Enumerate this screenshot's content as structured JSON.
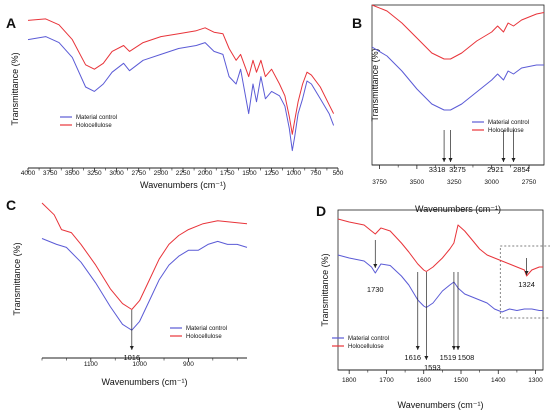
{
  "colors": {
    "material_control": "#5b5bd6",
    "holocellulose": "#e8343a",
    "axis": "#222222",
    "annotation": "#222222"
  },
  "chart_data": [
    {
      "panel": "A",
      "type": "line",
      "xlabel": "Wavenumbers (cm⁻¹)",
      "ylabel": "Transmittance (%)",
      "xlim": [
        4000,
        500
      ],
      "x_reversed": true,
      "ylim": [
        0,
        100
      ],
      "xticks": [
        4000,
        3750,
        3500,
        3250,
        3000,
        2750,
        2500,
        2250,
        2000,
        1750,
        1500,
        1250,
        1000,
        750,
        500
      ],
      "legend": "lower-left",
      "series": [
        {
          "name": "Material control",
          "color": "#5b5bd6",
          "points": [
            [
              4000,
              80
            ],
            [
              3800,
              82
            ],
            [
              3650,
              78
            ],
            [
              3500,
              68
            ],
            [
              3350,
              48
            ],
            [
              3250,
              45
            ],
            [
              3150,
              50
            ],
            [
              3050,
              58
            ],
            [
              2921,
              64
            ],
            [
              2854,
              59
            ],
            [
              2700,
              66
            ],
            [
              2500,
              70
            ],
            [
              2300,
              74
            ],
            [
              2100,
              76
            ],
            [
              2000,
              78
            ],
            [
              1900,
              72
            ],
            [
              1800,
              70
            ],
            [
              1730,
              55
            ],
            [
              1650,
              50
            ],
            [
              1600,
              60
            ],
            [
              1508,
              30
            ],
            [
              1460,
              50
            ],
            [
              1420,
              38
            ],
            [
              1370,
              55
            ],
            [
              1320,
              40
            ],
            [
              1250,
              45
            ],
            [
              1160,
              42
            ],
            [
              1100,
              35
            ],
            [
              1050,
              20
            ],
            [
              1016,
              5
            ],
            [
              990,
              14
            ],
            [
              950,
              30
            ],
            [
              900,
              40
            ],
            [
              850,
              52
            ],
            [
              800,
              50
            ],
            [
              700,
              40
            ],
            [
              600,
              30
            ],
            [
              550,
              22
            ]
          ]
        },
        {
          "name": "Holocellulose",
          "color": "#e8343a",
          "points": [
            [
              4000,
              93
            ],
            [
              3800,
              94
            ],
            [
              3650,
              90
            ],
            [
              3500,
              80
            ],
            [
              3350,
              63
            ],
            [
              3250,
              60
            ],
            [
              3150,
              64
            ],
            [
              3050,
              72
            ],
            [
              2921,
              76
            ],
            [
              2854,
              72
            ],
            [
              2700,
              78
            ],
            [
              2500,
              82
            ],
            [
              2300,
              84
            ],
            [
              2100,
              86
            ],
            [
              2000,
              88
            ],
            [
              1900,
              85
            ],
            [
              1800,
              84
            ],
            [
              1730,
              74
            ],
            [
              1650,
              66
            ],
            [
              1600,
              70
            ],
            [
              1508,
              55
            ],
            [
              1460,
              66
            ],
            [
              1420,
              58
            ],
            [
              1370,
              66
            ],
            [
              1320,
              55
            ],
            [
              1250,
              60
            ],
            [
              1160,
              50
            ],
            [
              1100,
              42
            ],
            [
              1050,
              28
            ],
            [
              1016,
              16
            ],
            [
              990,
              25
            ],
            [
              950,
              38
            ],
            [
              900,
              50
            ],
            [
              850,
              58
            ],
            [
              800,
              56
            ],
            [
              700,
              48
            ],
            [
              600,
              36
            ],
            [
              550,
              30
            ]
          ]
        }
      ]
    },
    {
      "panel": "B",
      "type": "line",
      "xlabel": "Wavenumbers (cm⁻¹)",
      "ylabel": "Transmittance (%)",
      "xlim": [
        3800,
        2650
      ],
      "x_reversed": true,
      "ylim": [
        0,
        100
      ],
      "xticks": [
        3750,
        3500,
        3250,
        3000,
        2750
      ],
      "legend": "lower-right",
      "annotations": [
        3318,
        3275,
        2921,
        2854
      ],
      "series": [
        {
          "name": "Material control",
          "color": "#5b5bd6",
          "points": [
            [
              3800,
              72
            ],
            [
              3700,
              66
            ],
            [
              3600,
              56
            ],
            [
              3500,
              44
            ],
            [
              3400,
              34
            ],
            [
              3318,
              30
            ],
            [
              3275,
              30
            ],
            [
              3200,
              34
            ],
            [
              3100,
              42
            ],
            [
              3000,
              50
            ],
            [
              2960,
              54
            ],
            [
              2921,
              50
            ],
            [
              2890,
              56
            ],
            [
              2854,
              54
            ],
            [
              2800,
              58
            ],
            [
              2700,
              60
            ],
            [
              2650,
              60
            ]
          ]
        },
        {
          "name": "Holocellulose",
          "color": "#e8343a",
          "points": [
            [
              3800,
              100
            ],
            [
              3700,
              96
            ],
            [
              3600,
              88
            ],
            [
              3500,
              78
            ],
            [
              3400,
              68
            ],
            [
              3318,
              64
            ],
            [
              3275,
              64
            ],
            [
              3200,
              68
            ],
            [
              3100,
              76
            ],
            [
              3000,
              82
            ],
            [
              2960,
              86
            ],
            [
              2921,
              82
            ],
            [
              2890,
              88
            ],
            [
              2854,
              86
            ],
            [
              2800,
              90
            ],
            [
              2700,
              94
            ],
            [
              2650,
              95
            ]
          ]
        }
      ]
    },
    {
      "panel": "C",
      "type": "line",
      "xlabel": "Wavenumbers (cm⁻¹)",
      "ylabel": "Transmittance (%)",
      "xlim": [
        1200,
        780
      ],
      "x_reversed": true,
      "ylim": [
        0,
        100
      ],
      "xticks": [
        1100,
        1000,
        900
      ],
      "legend": "lower-right",
      "annotations": [
        1016
      ],
      "series": [
        {
          "name": "Material control",
          "color": "#5b5bd6",
          "points": [
            [
              1200,
              74
            ],
            [
              1170,
              70
            ],
            [
              1150,
              68
            ],
            [
              1120,
              58
            ],
            [
              1090,
              44
            ],
            [
              1060,
              28
            ],
            [
              1035,
              16
            ],
            [
              1016,
              12
            ],
            [
              1000,
              18
            ],
            [
              980,
              32
            ],
            [
              960,
              46
            ],
            [
              940,
              56
            ],
            [
              920,
              62
            ],
            [
              900,
              66
            ],
            [
              880,
              66
            ],
            [
              860,
              70
            ],
            [
              840,
              72
            ],
            [
              820,
              70
            ],
            [
              800,
              70
            ],
            [
              780,
              68
            ]
          ]
        },
        {
          "name": "Holocellulose",
          "color": "#e8343a",
          "points": [
            [
              1200,
              98
            ],
            [
              1175,
              90
            ],
            [
              1160,
              80
            ],
            [
              1140,
              78
            ],
            [
              1120,
              70
            ],
            [
              1090,
              56
            ],
            [
              1060,
              40
            ],
            [
              1035,
              30
            ],
            [
              1016,
              26
            ],
            [
              1000,
              32
            ],
            [
              980,
              46
            ],
            [
              960,
              60
            ],
            [
              940,
              70
            ],
            [
              920,
              76
            ],
            [
              900,
              80
            ],
            [
              870,
              84
            ],
            [
              840,
              86
            ],
            [
              810,
              85
            ],
            [
              780,
              84
            ]
          ]
        }
      ]
    },
    {
      "panel": "D",
      "type": "line",
      "xlabel": "Wavenumbers (cm⁻¹)",
      "ylabel": "Transmittance (%)",
      "xlim": [
        1830,
        1280
      ],
      "x_reversed": true,
      "ylim": [
        0,
        100
      ],
      "xticks": [
        1800,
        1700,
        1600,
        1500,
        1400,
        1300
      ],
      "legend": "lower-left",
      "annotations": [
        1730,
        1616,
        1593,
        1519,
        1508,
        1324
      ],
      "series": [
        {
          "name": "Material control",
          "color": "#5b5bd6",
          "points": [
            [
              1830,
              70
            ],
            [
              1800,
              68
            ],
            [
              1760,
              66
            ],
            [
              1740,
              62
            ],
            [
              1730,
              58
            ],
            [
              1715,
              64
            ],
            [
              1690,
              63
            ],
            [
              1660,
              56
            ],
            [
              1640,
              50
            ],
            [
              1616,
              40
            ],
            [
              1600,
              36
            ],
            [
              1593,
              35
            ],
            [
              1575,
              38
            ],
            [
              1550,
              46
            ],
            [
              1530,
              50
            ],
            [
              1519,
              52
            ],
            [
              1508,
              48
            ],
            [
              1490,
              44
            ],
            [
              1470,
              42
            ],
            [
              1450,
              40
            ],
            [
              1430,
              38
            ],
            [
              1410,
              34
            ],
            [
              1390,
              32
            ],
            [
              1370,
              34
            ],
            [
              1350,
              33
            ],
            [
              1330,
              34
            ],
            [
              1310,
              34
            ],
            [
              1290,
              33
            ],
            [
              1280,
              33
            ]
          ]
        },
        {
          "name": "Holocellulose",
          "color": "#e8343a",
          "points": [
            [
              1830,
              94
            ],
            [
              1800,
              92
            ],
            [
              1760,
              90
            ],
            [
              1740,
              86
            ],
            [
              1730,
              84
            ],
            [
              1715,
              88
            ],
            [
              1690,
              86
            ],
            [
              1660,
              78
            ],
            [
              1640,
              72
            ],
            [
              1616,
              64
            ],
            [
              1600,
              60
            ],
            [
              1593,
              59
            ],
            [
              1575,
              62
            ],
            [
              1550,
              68
            ],
            [
              1530,
              74
            ],
            [
              1519,
              78
            ],
            [
              1508,
              90
            ],
            [
              1490,
              86
            ],
            [
              1470,
              80
            ],
            [
              1450,
              74
            ],
            [
              1430,
              70
            ],
            [
              1410,
              68
            ],
            [
              1390,
              66
            ],
            [
              1370,
              64
            ],
            [
              1350,
              62
            ],
            [
              1330,
              60
            ],
            [
              1324,
              56
            ],
            [
              1310,
              60
            ],
            [
              1290,
              62
            ],
            [
              1280,
              62
            ]
          ]
        }
      ]
    }
  ]
}
